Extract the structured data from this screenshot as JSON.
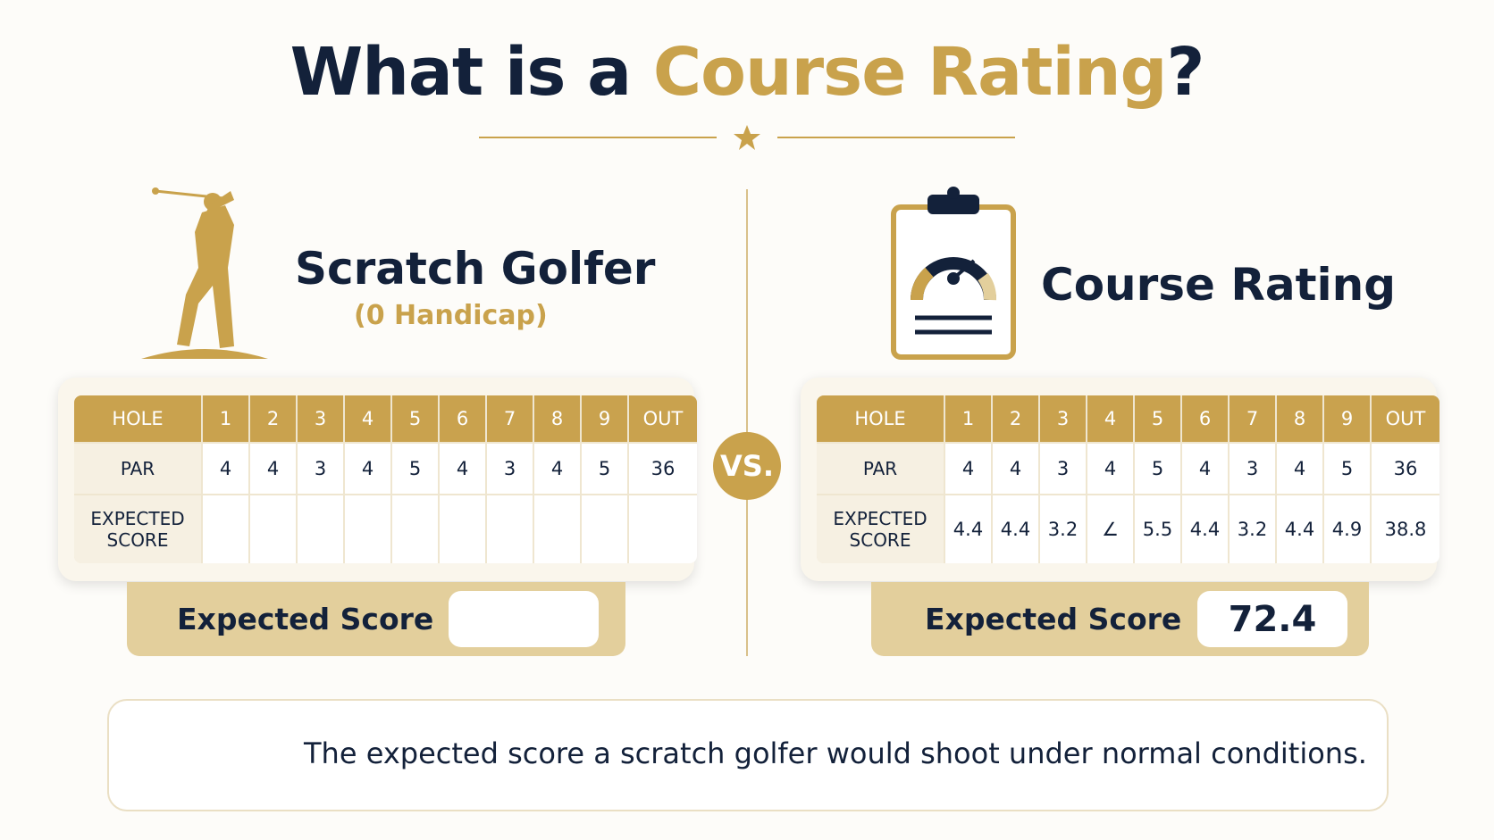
{
  "title": {
    "prefix": "What is a",
    "highlight": "Course Rating",
    "suffix": "?"
  },
  "left": {
    "heading": "Scratch Golfer",
    "subheading": "(0 Handicap)",
    "table": {
      "header": [
        "HOLE",
        1,
        2,
        3,
        4,
        5,
        6,
        7,
        8,
        9,
        "OUT"
      ],
      "rows": [
        [
          "PAR",
          4,
          4,
          3,
          4,
          5,
          4,
          3,
          4,
          5,
          36
        ],
        [
          "EXPECTED SCORE"
        ]
      ]
    },
    "summary": {
      "label": "Expected Score"
    }
  },
  "vs": "VS.",
  "right": {
    "heading": "Course Rating",
    "table": {
      "header": [
        "HOLE",
        1,
        2,
        3,
        4,
        5,
        6,
        7,
        8,
        9,
        "OUT"
      ],
      "rows": [
        [
          "PAR",
          4,
          4,
          3,
          4,
          5,
          4,
          3,
          4,
          5,
          36
        ],
        [
          "EXPECTED SCORE",
          4.4,
          4.4,
          3.2,
          "∠",
          5.5,
          4.4,
          3.2,
          4.4,
          4.9,
          38.8
        ]
      ]
    },
    "summary": {
      "label": "Expected Score",
      "value": 72.4
    }
  },
  "info": {
    "text": "The expected score a scratch golfer would shoot under normal conditions."
  }
}
